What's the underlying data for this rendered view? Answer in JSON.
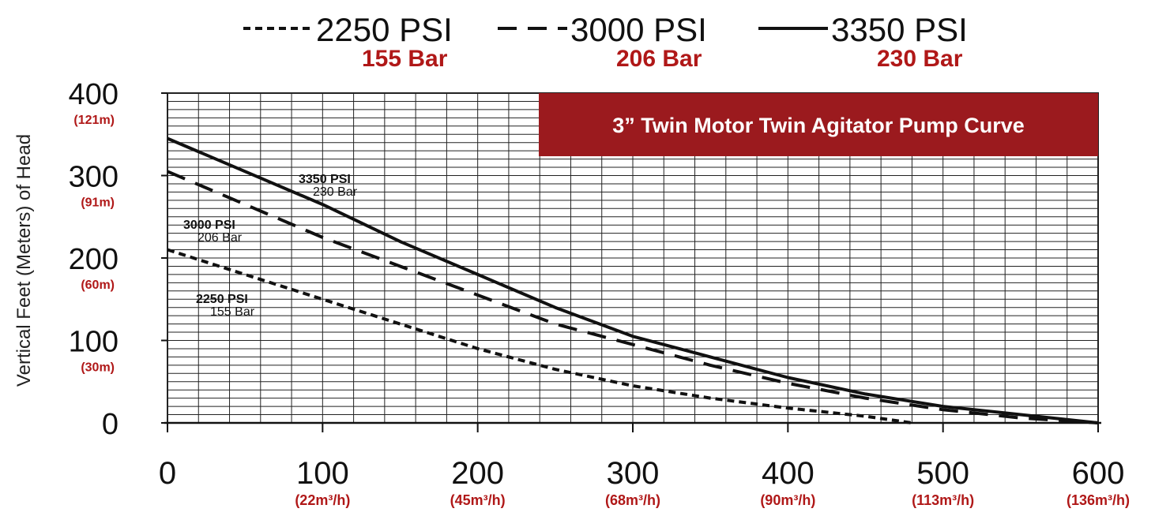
{
  "chart_data": {
    "type": "line",
    "title": "3” Twin Motor Twin Agitator Pump Curve",
    "ylabel": "Vertical Feet (Meters) of Head",
    "xlabel": "",
    "xlim": [
      0,
      600
    ],
    "ylim": [
      0,
      400
    ],
    "grid": true,
    "legend_position": "top",
    "x_ticks": [
      {
        "value": 0,
        "label": "0",
        "sub": ""
      },
      {
        "value": 100,
        "label": "100",
        "sub": "(22m³/h)"
      },
      {
        "value": 200,
        "label": "200",
        "sub": "(45m³/h)"
      },
      {
        "value": 300,
        "label": "300",
        "sub": "(68m³/h)"
      },
      {
        "value": 400,
        "label": "400",
        "sub": "(90m³/h)"
      },
      {
        "value": 500,
        "label": "500",
        "sub": "(113m³/h)"
      },
      {
        "value": 600,
        "label": "600",
        "sub": "(136m³/h)"
      }
    ],
    "y_ticks": [
      {
        "value": 0,
        "label": "0",
        "sub": ""
      },
      {
        "value": 100,
        "label": "100",
        "sub": "(30m)"
      },
      {
        "value": 200,
        "label": "200",
        "sub": "(60m)"
      },
      {
        "value": 300,
        "label": "300",
        "sub": "(91m)"
      },
      {
        "value": 400,
        "label": "400",
        "sub": "(121m)"
      }
    ],
    "series": [
      {
        "name": "2250 PSI",
        "bar": "155 Bar",
        "style": "dotted",
        "x": [
          0,
          50,
          100,
          150,
          200,
          250,
          300,
          350,
          400,
          450,
          480
        ],
        "y": [
          210,
          180,
          150,
          120,
          90,
          65,
          45,
          30,
          18,
          8,
          0
        ]
      },
      {
        "name": "3000 PSI",
        "bar": "206 Bar",
        "style": "dashed",
        "x": [
          0,
          50,
          100,
          150,
          200,
          250,
          300,
          350,
          400,
          450,
          500,
          550,
          600
        ],
        "y": [
          305,
          265,
          225,
          190,
          155,
          120,
          95,
          70,
          48,
          30,
          16,
          6,
          0
        ]
      },
      {
        "name": "3350 PSI",
        "bar": "230 Bar",
        "style": "solid",
        "x": [
          0,
          50,
          100,
          150,
          200,
          250,
          300,
          350,
          400,
          450,
          500,
          550,
          600
        ],
        "y": [
          345,
          305,
          265,
          220,
          180,
          140,
          105,
          80,
          55,
          35,
          20,
          10,
          0
        ]
      }
    ],
    "colors": {
      "bar_text": "#b01818",
      "title_bg": "#9b1a1e",
      "title_text": "#ffffff",
      "line": "#111111",
      "grid": "#222222"
    }
  }
}
